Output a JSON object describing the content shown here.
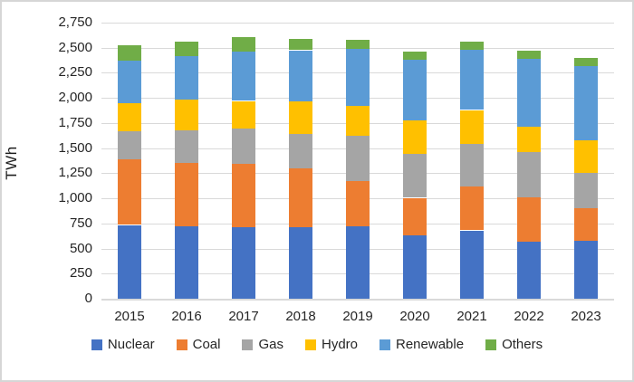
{
  "chart_data": {
    "type": "bar",
    "stacked": true,
    "title": "",
    "ylabel": "TWh",
    "xlabel": "",
    "ylim": [
      0,
      2750
    ],
    "ytick_step": 250,
    "grid": true,
    "legend_position": "bottom",
    "categories": [
      "2015",
      "2016",
      "2017",
      "2018",
      "2019",
      "2020",
      "2021",
      "2022",
      "2023"
    ],
    "series": [
      {
        "name": "Nuclear",
        "color": "#4472C4",
        "values": [
          735,
          720,
          715,
          710,
          720,
          635,
          680,
          565,
          575
        ]
      },
      {
        "name": "Coal",
        "color": "#ED7D31",
        "values": [
          650,
          635,
          625,
          585,
          450,
          370,
          435,
          445,
          325
        ]
      },
      {
        "name": "Gas",
        "color": "#A5A5A5",
        "values": [
          280,
          320,
          355,
          350,
          450,
          440,
          430,
          450,
          350
        ]
      },
      {
        "name": "Hydro",
        "color": "#FFC000",
        "values": [
          285,
          310,
          275,
          320,
          300,
          335,
          335,
          255,
          325
        ]
      },
      {
        "name": "Renewable",
        "color": "#5B9BD5",
        "values": [
          425,
          430,
          490,
          510,
          570,
          600,
          600,
          675,
          740
        ]
      },
      {
        "name": "Others",
        "color": "#70AD47",
        "values": [
          150,
          150,
          150,
          115,
          90,
          80,
          85,
          85,
          85
        ]
      }
    ]
  },
  "colors": {
    "gridline": "#D9D9D9",
    "axis_line": "#D9D9D9",
    "tick_text": "#262626",
    "frame_border": "#D6D6D6",
    "background": "#FFFFFF"
  }
}
